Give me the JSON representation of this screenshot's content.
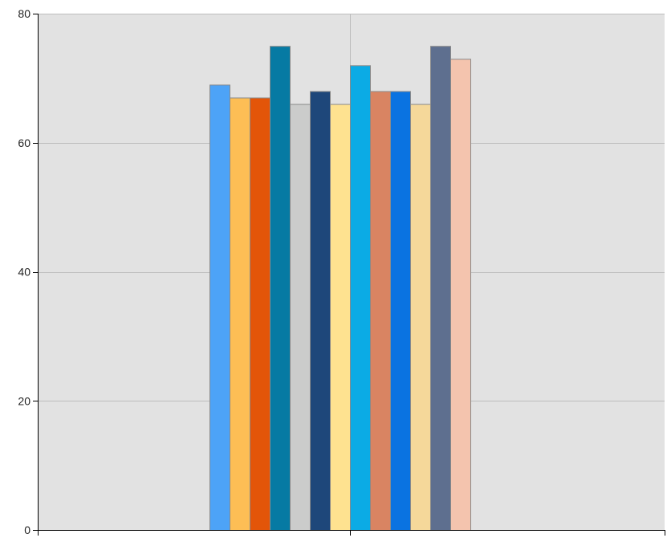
{
  "chart_data": {
    "type": "bar",
    "title": "",
    "xlabel": "",
    "ylabel": "",
    "ylim": [
      0,
      80
    ],
    "yticks": [
      0,
      20,
      40,
      60,
      80
    ],
    "grid": true,
    "legend": "none",
    "plot_background": "#e2e2e2",
    "gridline_color": "#bdbdbd",
    "bar_outline_color": "#8a8a8a",
    "series": [
      {
        "values": [
          69
        ],
        "color": "#4da3f7"
      },
      {
        "values": [
          67
        ],
        "color": "#fdbe55"
      },
      {
        "values": [
          67
        ],
        "color": "#e35509"
      },
      {
        "values": [
          75
        ],
        "color": "#067aa3"
      },
      {
        "values": [
          66
        ],
        "color": "#cbcccb"
      },
      {
        "values": [
          68
        ],
        "color": "#1e477a"
      },
      {
        "values": [
          66
        ],
        "color": "#fee290"
      },
      {
        "values": [
          72
        ],
        "color": "#0babe5"
      },
      {
        "values": [
          68
        ],
        "color": "#d98462"
      },
      {
        "values": [
          68
        ],
        "color": "#0a73e1"
      },
      {
        "values": [
          66
        ],
        "color": "#f5d89a"
      },
      {
        "values": [
          75
        ],
        "color": "#5e6f8f"
      },
      {
        "values": [
          73
        ],
        "color": "#f4c4ae"
      }
    ]
  }
}
